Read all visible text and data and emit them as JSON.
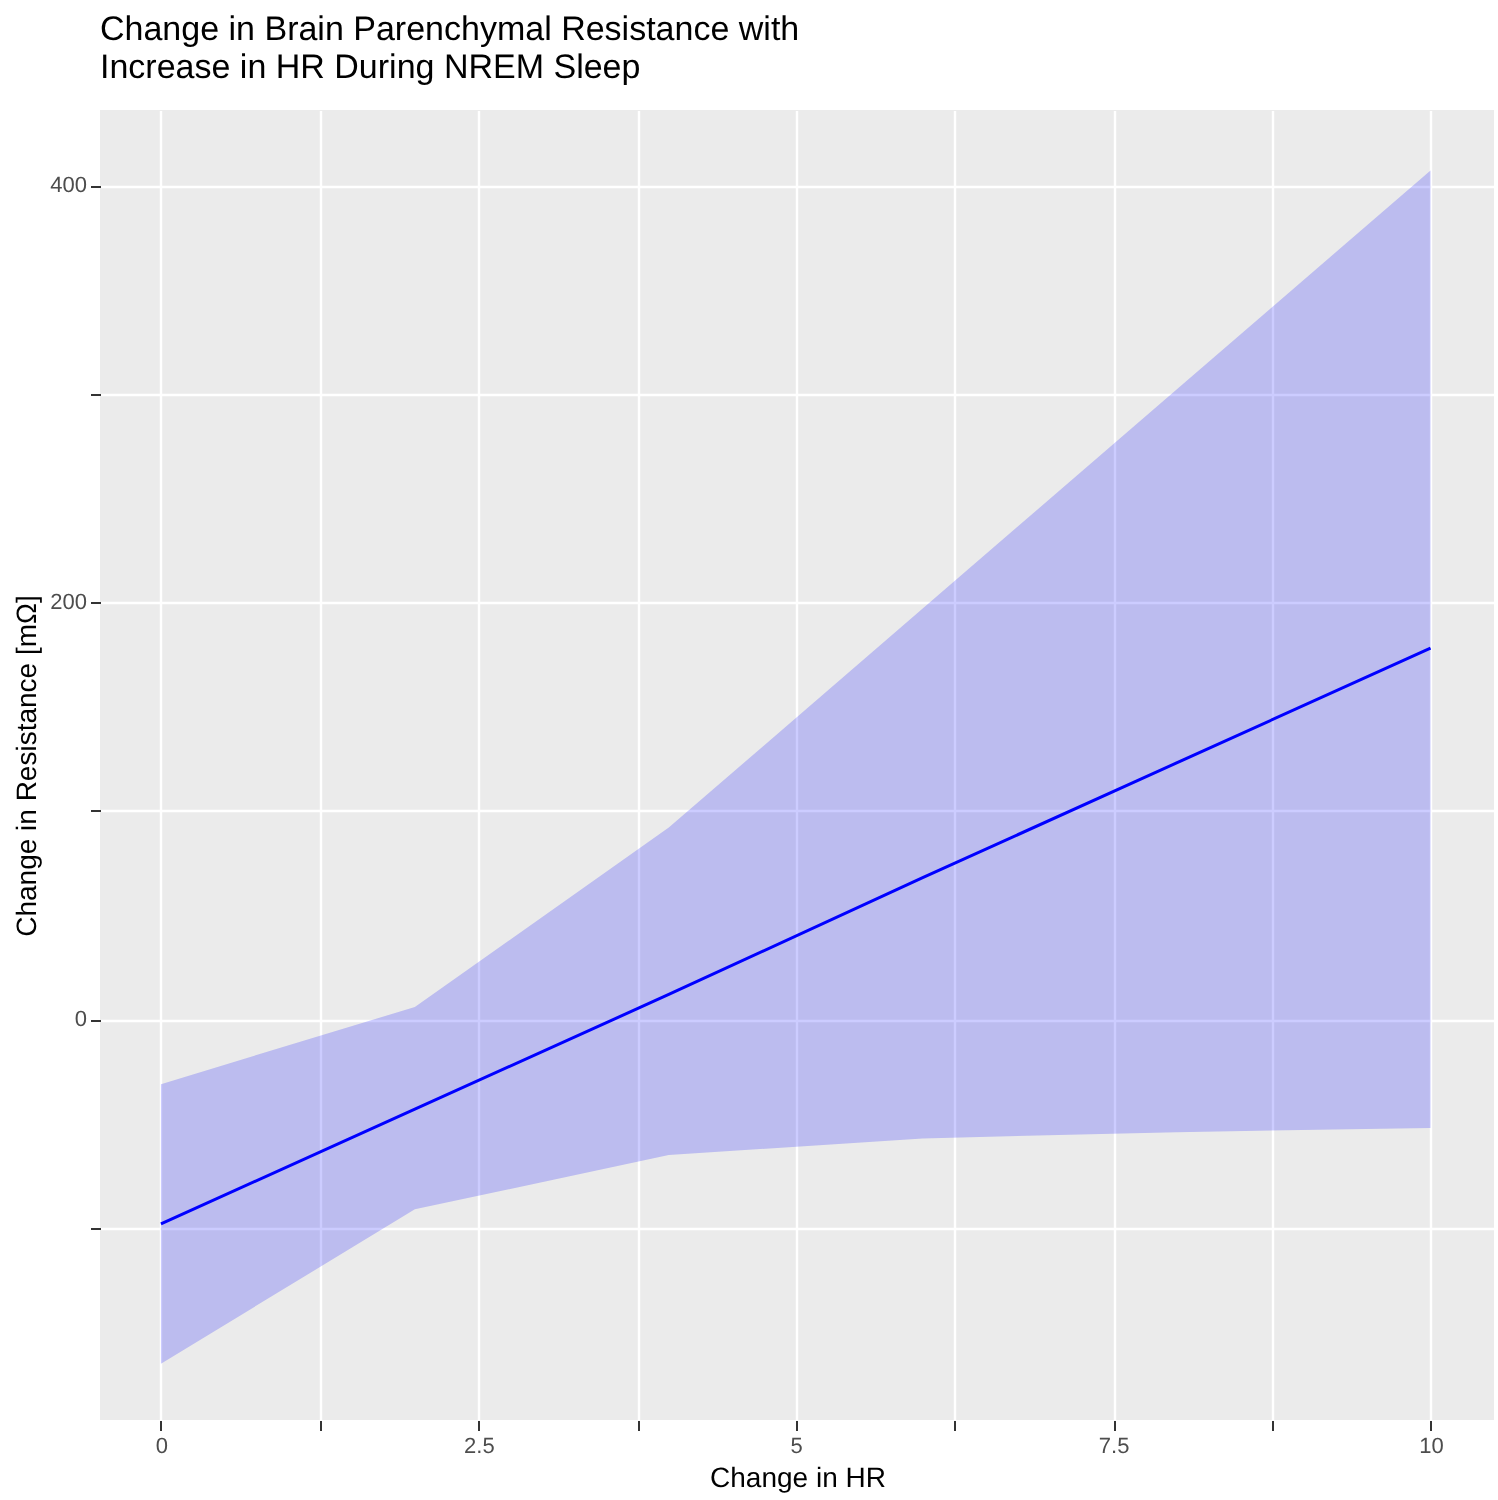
{
  "chart_data": {
    "type": "line",
    "title": "Change in Brain Parenchymal Resistance with\nIncrease in HR During NREM Sleep",
    "xlabel": "Change in HR",
    "ylabel": "Change in Resistance [mΩ]",
    "x": [
      0,
      2,
      4,
      6,
      8,
      10
    ],
    "series": [
      {
        "color": "#0000ff",
        "values": [
          -98,
          -43,
          12,
          68,
          123,
          178
        ],
        "lower": [
          -165,
          -91,
          -65,
          -57,
          -54,
          -52
        ],
        "upper": [
          -31,
          6,
          92,
          197,
          302,
          407
        ]
      }
    ],
    "xlim": [
      -0.48,
      10.5
    ],
    "ylim": [
      -192,
      436
    ],
    "xticks": [
      0,
      {
        "value": 1.25,
        "label": null
      },
      2.5,
      {
        "value": 3.75,
        "label": null
      },
      5,
      {
        "value": 6.25,
        "label": null
      },
      7.5,
      {
        "value": 8.75,
        "label": null
      },
      10
    ],
    "yticks": [
      {
        "value": -100,
        "label": null
      },
      0,
      {
        "value": 100,
        "label": null
      },
      200,
      {
        "value": 300,
        "label": null
      },
      400
    ],
    "grid": true,
    "marker": "none",
    "line_style": "solid"
  }
}
